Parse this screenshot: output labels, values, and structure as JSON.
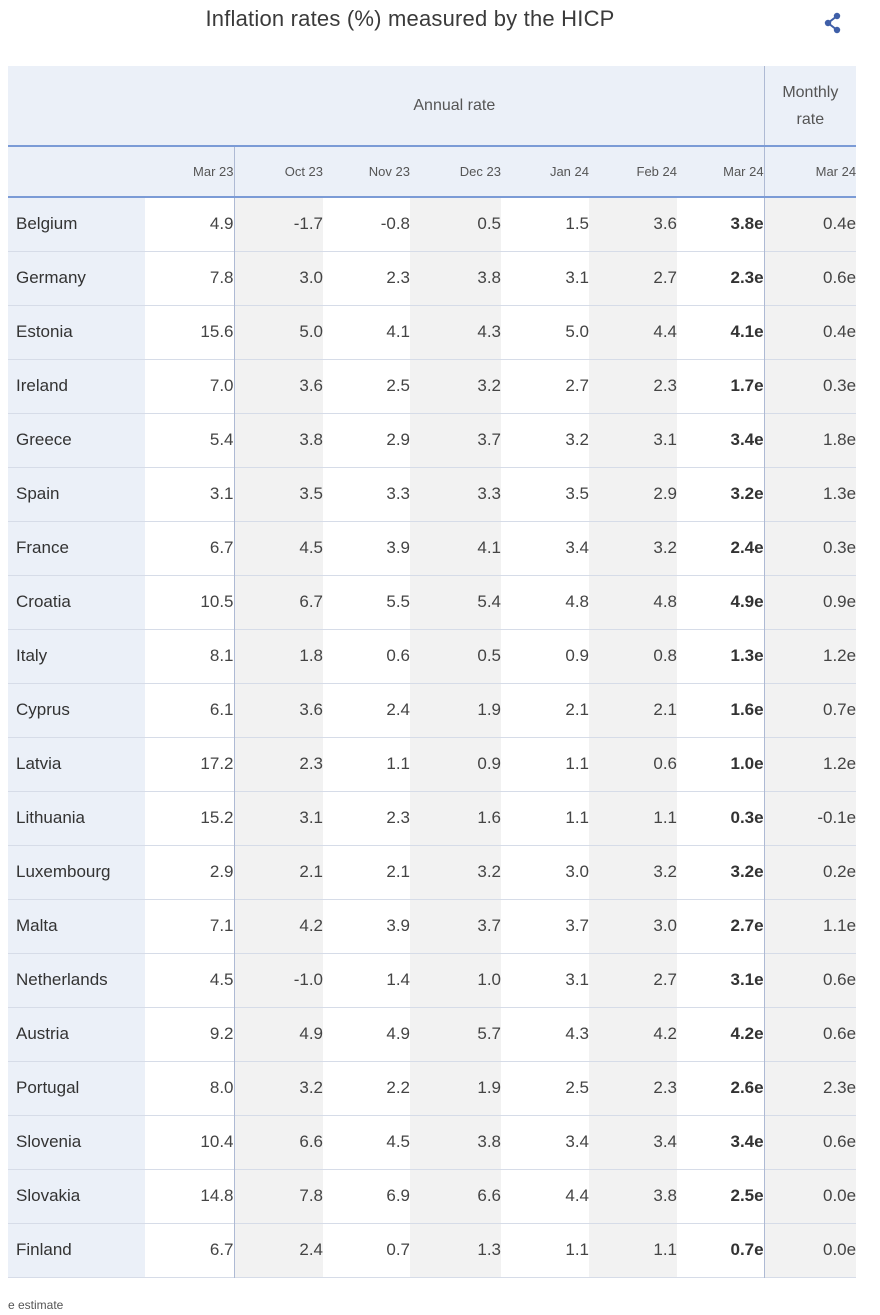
{
  "header": {
    "title": "Inflation rates (%) measured by the HICP"
  },
  "icons": {
    "share": "share-icon"
  },
  "colors": {
    "accent": "#3f5fa8",
    "header_bg": "#ebf0f8",
    "rule": "#7b9bd6"
  },
  "footnote": "e estimate",
  "chart_data": {
    "type": "table",
    "title": "Inflation rates (%) measured by the HICP",
    "group_headers": [
      {
        "label": "Annual rate",
        "span": 7
      },
      {
        "label": "Monthly rate",
        "span": 1
      }
    ],
    "columns": [
      "Mar 23",
      "Oct 23",
      "Nov 23",
      "Dec 23",
      "Jan 24",
      "Feb 24",
      "Mar 24",
      "Mar 24"
    ],
    "rows": [
      {
        "country": "Belgium",
        "values": [
          "4.9",
          "-1.7",
          "-0.8",
          "0.5",
          "1.5",
          "3.6",
          "3.8e",
          "0.4e"
        ]
      },
      {
        "country": "Germany",
        "values": [
          "7.8",
          "3.0",
          "2.3",
          "3.8",
          "3.1",
          "2.7",
          "2.3e",
          "0.6e"
        ]
      },
      {
        "country": "Estonia",
        "values": [
          "15.6",
          "5.0",
          "4.1",
          "4.3",
          "5.0",
          "4.4",
          "4.1e",
          "0.4e"
        ]
      },
      {
        "country": "Ireland",
        "values": [
          "7.0",
          "3.6",
          "2.5",
          "3.2",
          "2.7",
          "2.3",
          "1.7e",
          "0.3e"
        ]
      },
      {
        "country": "Greece",
        "values": [
          "5.4",
          "3.8",
          "2.9",
          "3.7",
          "3.2",
          "3.1",
          "3.4e",
          "1.8e"
        ]
      },
      {
        "country": "Spain",
        "values": [
          "3.1",
          "3.5",
          "3.3",
          "3.3",
          "3.5",
          "2.9",
          "3.2e",
          "1.3e"
        ]
      },
      {
        "country": "France",
        "values": [
          "6.7",
          "4.5",
          "3.9",
          "4.1",
          "3.4",
          "3.2",
          "2.4e",
          "0.3e"
        ]
      },
      {
        "country": "Croatia",
        "values": [
          "10.5",
          "6.7",
          "5.5",
          "5.4",
          "4.8",
          "4.8",
          "4.9e",
          "0.9e"
        ]
      },
      {
        "country": "Italy",
        "values": [
          "8.1",
          "1.8",
          "0.6",
          "0.5",
          "0.9",
          "0.8",
          "1.3e",
          "1.2e"
        ]
      },
      {
        "country": "Cyprus",
        "values": [
          "6.1",
          "3.6",
          "2.4",
          "1.9",
          "2.1",
          "2.1",
          "1.6e",
          "0.7e"
        ]
      },
      {
        "country": "Latvia",
        "values": [
          "17.2",
          "2.3",
          "1.1",
          "0.9",
          "1.1",
          "0.6",
          "1.0e",
          "1.2e"
        ]
      },
      {
        "country": "Lithuania",
        "values": [
          "15.2",
          "3.1",
          "2.3",
          "1.6",
          "1.1",
          "1.1",
          "0.3e",
          "-0.1e"
        ]
      },
      {
        "country": "Luxembourg",
        "values": [
          "2.9",
          "2.1",
          "2.1",
          "3.2",
          "3.0",
          "3.2",
          "3.2e",
          "0.2e"
        ]
      },
      {
        "country": "Malta",
        "values": [
          "7.1",
          "4.2",
          "3.9",
          "3.7",
          "3.7",
          "3.0",
          "2.7e",
          "1.1e"
        ]
      },
      {
        "country": "Netherlands",
        "values": [
          "4.5",
          "-1.0",
          "1.4",
          "1.0",
          "3.1",
          "2.7",
          "3.1e",
          "0.6e"
        ]
      },
      {
        "country": "Austria",
        "values": [
          "9.2",
          "4.9",
          "4.9",
          "5.7",
          "4.3",
          "4.2",
          "4.2e",
          "0.6e"
        ]
      },
      {
        "country": "Portugal",
        "values": [
          "8.0",
          "3.2",
          "2.2",
          "1.9",
          "2.5",
          "2.3",
          "2.6e",
          "2.3e"
        ]
      },
      {
        "country": "Slovenia",
        "values": [
          "10.4",
          "6.6",
          "4.5",
          "3.8",
          "3.4",
          "3.4",
          "3.4e",
          "0.6e"
        ]
      },
      {
        "country": "Slovakia",
        "values": [
          "14.8",
          "7.8",
          "6.9",
          "6.6",
          "4.4",
          "3.8",
          "2.5e",
          "0.0e"
        ]
      },
      {
        "country": "Finland",
        "values": [
          "6.7",
          "2.4",
          "0.7",
          "1.3",
          "1.1",
          "1.1",
          "0.7e",
          "0.0e"
        ]
      }
    ]
  }
}
